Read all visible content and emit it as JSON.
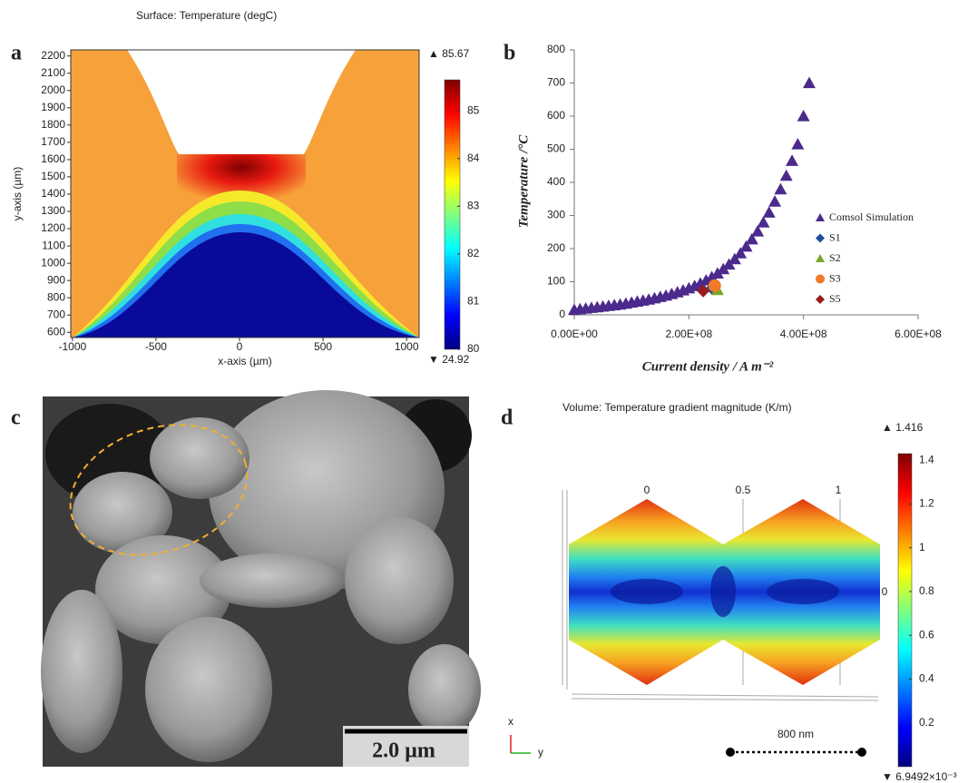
{
  "chart_data": [
    {
      "type": "heatmap",
      "label": "a",
      "title": "Surface: Temperature (degC)",
      "xlabel": "x-axis (µm)",
      "ylabel": "y-axis (µm)",
      "xlim": [
        -1010,
        1075
      ],
      "xticks": [
        -1000,
        -500,
        0,
        500,
        1000
      ],
      "ylim": [
        570,
        2235
      ],
      "yticks": [
        600,
        700,
        800,
        900,
        1000,
        1100,
        1200,
        1300,
        1400,
        1500,
        1600,
        1700,
        1800,
        1900,
        2000,
        2100,
        2200
      ],
      "colorbar": {
        "lim": [
          80,
          85.65
        ],
        "ticks": [
          80,
          81,
          82,
          83,
          84,
          85
        ],
        "max_label": "▲ 85.67",
        "min_label": "▼ 24.92"
      }
    },
    {
      "type": "scatter",
      "label": "b",
      "xlabel": "Current density / A m⁻²",
      "ylabel": "Temperature /°C",
      "xlim": [
        0,
        600000000
      ],
      "xticks": [
        {
          "value": 0,
          "label": "0.00E+00"
        },
        {
          "value": 200000000,
          "label": "2.00E+08"
        },
        {
          "value": 400000000,
          "label": "4.00E+08"
        },
        {
          "value": 600000000,
          "label": "6.00E+08"
        }
      ],
      "ylim": [
        0,
        800
      ],
      "yticks": [
        0,
        100,
        200,
        300,
        400,
        500,
        600,
        700,
        800
      ],
      "series": [
        {
          "name": "Comsol Simulation",
          "color": "#4b2a8c",
          "marker": "triangle",
          "x": [
            0,
            10000000.0,
            20000000.0,
            30000000.0,
            40000000.0,
            50000000.0,
            60000000.0,
            70000000.0,
            80000000.0,
            90000000.0,
            100000000.0,
            110000000.0,
            120000000.0,
            130000000.0,
            140000000.0,
            150000000.0,
            160000000.0,
            170000000.0,
            180000000.0,
            190000000.0,
            200000000.0,
            210000000.0,
            220000000.0,
            230000000.0,
            240000000.0,
            250000000.0,
            260000000.0,
            270000000.0,
            280000000.0,
            290000000.0,
            300000000.0,
            310000000.0,
            320000000.0,
            330000000.0,
            340000000.0,
            350000000.0,
            360000000.0,
            370000000.0,
            380000000.0,
            390000000.0,
            400000000.0,
            410000000.0
          ],
          "values": [
            15,
            17,
            19,
            21,
            23,
            25,
            27,
            29,
            31,
            34,
            37,
            40,
            43,
            46,
            50,
            54,
            58,
            63,
            68,
            74,
            80,
            87,
            95,
            104,
            114,
            125,
            138,
            152,
            168,
            186,
            206,
            228,
            252,
            279,
            309,
            342,
            379,
            420,
            465,
            515,
            600,
            700
          ]
        },
        {
          "name": "S1",
          "color": "#1f4e9c",
          "marker": "diamond",
          "x": [
            240000000
          ],
          "values": [
            80
          ]
        },
        {
          "name": "S2",
          "color": "#7aa82a",
          "marker": "triangle",
          "x": [
            250000000
          ],
          "values": [
            75
          ]
        },
        {
          "name": "S3",
          "color": "#f07a28",
          "marker": "circle",
          "x": [
            245000000
          ],
          "values": [
            88
          ]
        },
        {
          "name": "S5",
          "color": "#9b1a1a",
          "marker": "diamond",
          "x": [
            225000000
          ],
          "values": [
            72
          ]
        }
      ]
    },
    {
      "type": "heatmap",
      "label": "d",
      "title": "Volume: Temperature gradient magnitude (K/m)",
      "annotations": [
        "0",
        "0.5",
        "1",
        "0",
        "x",
        "y",
        "800 nm"
      ],
      "colorbar": {
        "lim": [
          0,
          1.43
        ],
        "ticks": [
          0.2,
          0.4,
          0.6,
          0.8,
          1,
          1.2,
          1.4
        ],
        "max_label": "▲ 1.416",
        "min_label": "▼ 6.9492×10⁻³"
      }
    }
  ],
  "panel_c": {
    "label": "c",
    "scale_bar": "2.0 µm"
  }
}
